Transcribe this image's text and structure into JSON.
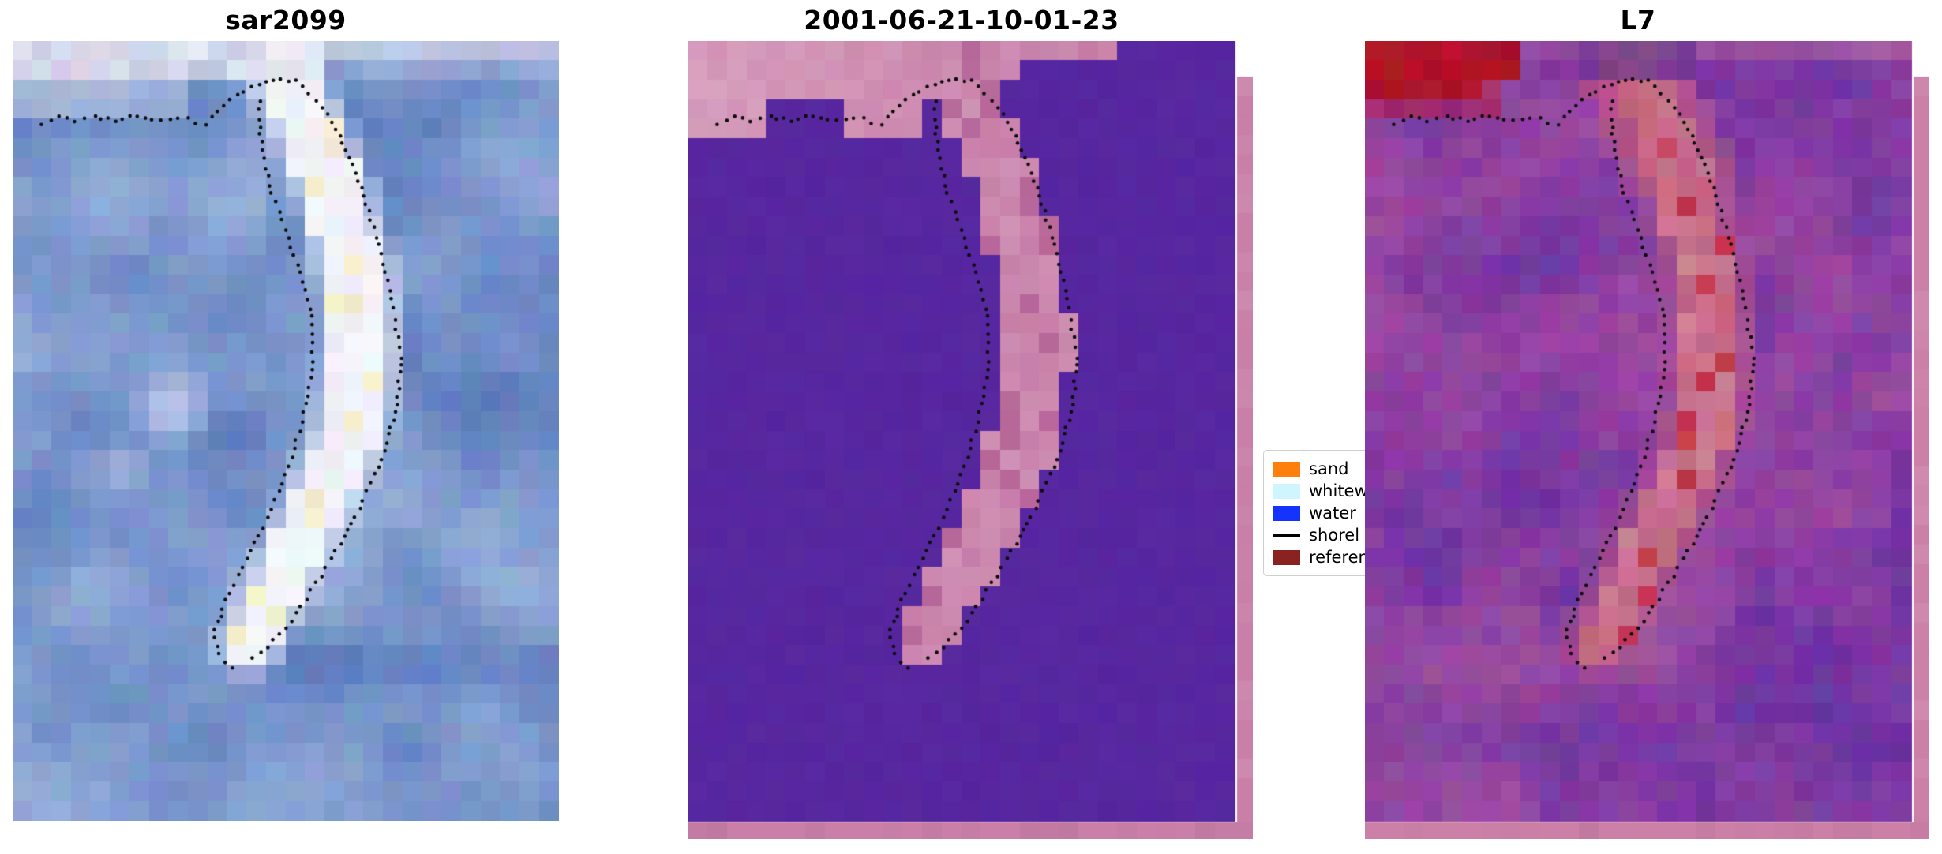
{
  "figure": {
    "background": "#ffffff"
  },
  "panels": [
    {
      "title": "sar2099",
      "type": "sar",
      "seed": 11,
      "palette": {
        "base_dark": "#5F7FBE",
        "base_light": "#94ADD9",
        "cloud": "#F4F3F8",
        "cloud_dim": "#D9D9EC",
        "band": "#F6F7FA",
        "band_cream": "#F3EFD0",
        "band_edge": "#CBD7EB",
        "blob": "#DDE4F3"
      }
    },
    {
      "title": "2001-06-21-10-01-23",
      "type": "class",
      "seed": 23,
      "palette": {
        "purple": "#5727A0",
        "pink": "#C77EA8",
        "pink_light": "#DCA8C4",
        "pink_dark": "#B8699A",
        "strip": "#C97FA8"
      }
    },
    {
      "title": "L7",
      "type": "l7",
      "seed": 37,
      "palette": {
        "base_b": "#7334A2",
        "base_c": "#9C48A2",
        "base_dark": "#5D3D9E",
        "red": "#C01428",
        "red_dark": "#8E1626",
        "band": "#C2607E",
        "band_light": "#D089A0",
        "band_red": "#C13A50",
        "indigo": "#4A2C92",
        "pink_sw": "#A85A9E",
        "strip": "#CC80A8"
      }
    }
  ],
  "legend": {
    "items": [
      {
        "label": "sand",
        "color": "#FF7F0E",
        "kind": "patch"
      },
      {
        "label": "whitew",
        "color": "#CFF5FF",
        "kind": "patch"
      },
      {
        "label": "water",
        "color": "#1433FF",
        "kind": "patch"
      },
      {
        "label": "shorel",
        "color": "#000000",
        "kind": "line"
      },
      {
        "label": "referen",
        "color": "#8B2222",
        "kind": "patch"
      }
    ]
  },
  "shoreline": {
    "color": "#0d0d0d",
    "dot_radius": 2.3,
    "spacing": 11,
    "paths": [
      [
        [
          0.055,
          0.105
        ],
        [
          0.085,
          0.098
        ],
        [
          0.115,
          0.103
        ],
        [
          0.15,
          0.097
        ],
        [
          0.19,
          0.102
        ],
        [
          0.23,
          0.096
        ],
        [
          0.27,
          0.101
        ],
        [
          0.305,
          0.097
        ],
        [
          0.335,
          0.104
        ],
        [
          0.355,
          0.108
        ],
        [
          0.375,
          0.09
        ],
        [
          0.41,
          0.068
        ],
        [
          0.45,
          0.055
        ],
        [
          0.49,
          0.048
        ],
        [
          0.52,
          0.052
        ],
        [
          0.555,
          0.075
        ],
        [
          0.585,
          0.105
        ],
        [
          0.61,
          0.14
        ],
        [
          0.632,
          0.178
        ],
        [
          0.652,
          0.218
        ],
        [
          0.668,
          0.262
        ],
        [
          0.686,
          0.308
        ],
        [
          0.7,
          0.356
        ],
        [
          0.71,
          0.405
        ],
        [
          0.705,
          0.455
        ],
        [
          0.69,
          0.505
        ],
        [
          0.665,
          0.555
        ],
        [
          0.635,
          0.6
        ],
        [
          0.6,
          0.645
        ],
        [
          0.565,
          0.685
        ],
        [
          0.528,
          0.725
        ],
        [
          0.49,
          0.76
        ],
        [
          0.455,
          0.785
        ],
        [
          0.425,
          0.8
        ]
      ],
      [
        [
          0.4,
          0.805
        ],
        [
          0.376,
          0.785
        ],
        [
          0.37,
          0.755
        ],
        [
          0.39,
          0.718
        ],
        [
          0.42,
          0.675
        ],
        [
          0.45,
          0.634
        ],
        [
          0.48,
          0.59
        ],
        [
          0.505,
          0.545
        ],
        [
          0.525,
          0.5
        ],
        [
          0.54,
          0.455
        ],
        [
          0.55,
          0.41
        ],
        [
          0.55,
          0.365
        ],
        [
          0.536,
          0.32
        ],
        [
          0.515,
          0.275
        ],
        [
          0.492,
          0.23
        ],
        [
          0.47,
          0.185
        ],
        [
          0.456,
          0.14
        ],
        [
          0.45,
          0.1
        ],
        [
          0.452,
          0.066
        ]
      ]
    ]
  },
  "band": {
    "centerline": [
      [
        0.49,
        0.035
      ],
      [
        0.525,
        0.09
      ],
      [
        0.558,
        0.14
      ],
      [
        0.59,
        0.2
      ],
      [
        0.614,
        0.26
      ],
      [
        0.632,
        0.32
      ],
      [
        0.64,
        0.385
      ],
      [
        0.634,
        0.45
      ],
      [
        0.612,
        0.51
      ],
      [
        0.58,
        0.57
      ],
      [
        0.543,
        0.625
      ],
      [
        0.505,
        0.678
      ],
      [
        0.468,
        0.728
      ],
      [
        0.432,
        0.772
      ]
    ],
    "half_width": 0.052
  },
  "chart_data": {
    "type": "heatmap",
    "subplots": [
      {
        "title": "sar2099",
        "content": "pixelated SAR tile: blue water, bright white curved sand-spit band, light cloud strip along top, dotted shoreline contour overlay"
      },
      {
        "title": "2001-06-21-10-01-23",
        "content": "classified tile: flat purple water, pink sand spit and pink upper beach region, pink edge strips on right and bottom, dotted shoreline contour overlay"
      },
      {
        "title": "L7",
        "content": "Landsat-7 false-color tile: purple/magenta sea, bright red patch top-left, reddish-pink curved sand spit, pink edge strips on right and bottom, dotted shoreline contour overlay"
      }
    ],
    "legend": {
      "entries": [
        "sand",
        "whitew",
        "water",
        "shorel",
        "referen"
      ],
      "position": "between second and third subplot, partially covered by third subplot"
    }
  }
}
